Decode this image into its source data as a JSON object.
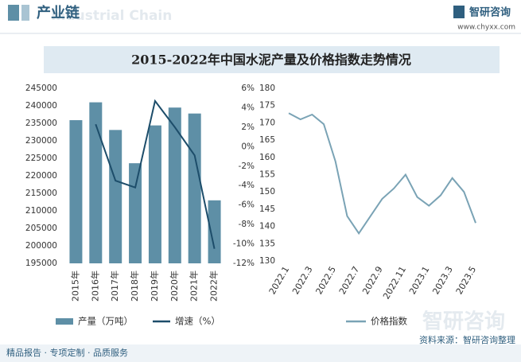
{
  "header": {
    "section": "产业链",
    "section_en": "Industrial Chain",
    "brand": "智研咨询",
    "url": "www.chyxx.com"
  },
  "title": "2015-2022年中国水泥产量及价格指数走势情况",
  "watermark": "智研咨询",
  "footer": {
    "slogan": "精品报告 · 专项定制 · 品质服务",
    "source": "资料来源：智研咨询整理"
  },
  "chart_data": [
    {
      "type": "bar",
      "categories": [
        "2015年",
        "2016年",
        "2017年",
        "2018年",
        "2019年",
        "2020年",
        "2021年",
        "2022年"
      ],
      "series": [
        {
          "name": "产量（万吨）",
          "type": "bar",
          "color": "#5e8fa6",
          "values": [
            235900,
            241000,
            233100,
            223600,
            234400,
            239500,
            237800,
            213000
          ]
        },
        {
          "name": "增速（%）",
          "type": "line",
          "axis": "y2",
          "color": "#1d4d6a",
          "values": [
            null,
            2.3,
            -3.5,
            -4.2,
            4.7,
            2.0,
            -0.9,
            -10.5
          ]
        }
      ],
      "ylim": [
        195000,
        245000
      ],
      "yticks": [
        195000,
        200000,
        205000,
        210000,
        215000,
        220000,
        225000,
        230000,
        235000,
        240000,
        245000
      ],
      "y2lim": [
        -12,
        6
      ],
      "y2ticks": [
        {
          "value": -12,
          "label": "-12%"
        },
        {
          "value": -10,
          "label": "-10%"
        },
        {
          "value": -8,
          "label": "-8%"
        },
        {
          "value": -6,
          "label": "-6%"
        },
        {
          "value": -4,
          "label": "-4%"
        },
        {
          "value": -2,
          "label": "-2%"
        },
        {
          "value": 0,
          "label": "0%"
        },
        {
          "value": 2,
          "label": "2%"
        },
        {
          "value": 4,
          "label": "4%"
        },
        {
          "value": 6,
          "label": "6%"
        }
      ]
    },
    {
      "type": "line",
      "categories": [
        "2022.1",
        null,
        "2022.3",
        null,
        "2022.5",
        null,
        "2022.7",
        null,
        "2022.9",
        null,
        "2022.11",
        null,
        "2023.1",
        null,
        "2023.3",
        null,
        "2023.5"
      ],
      "series": [
        {
          "name": "价格指数",
          "color": "#7aa3b5",
          "values": [
            172.8,
            171,
            172.4,
            169.6,
            158.8,
            143,
            138,
            143,
            148,
            151,
            155,
            148.5,
            146,
            149,
            154,
            150,
            141
          ]
        }
      ],
      "ylim": [
        130,
        180
      ],
      "yticks": [
        130,
        135,
        140,
        145,
        150,
        155,
        160,
        165,
        170,
        175,
        180
      ]
    }
  ]
}
